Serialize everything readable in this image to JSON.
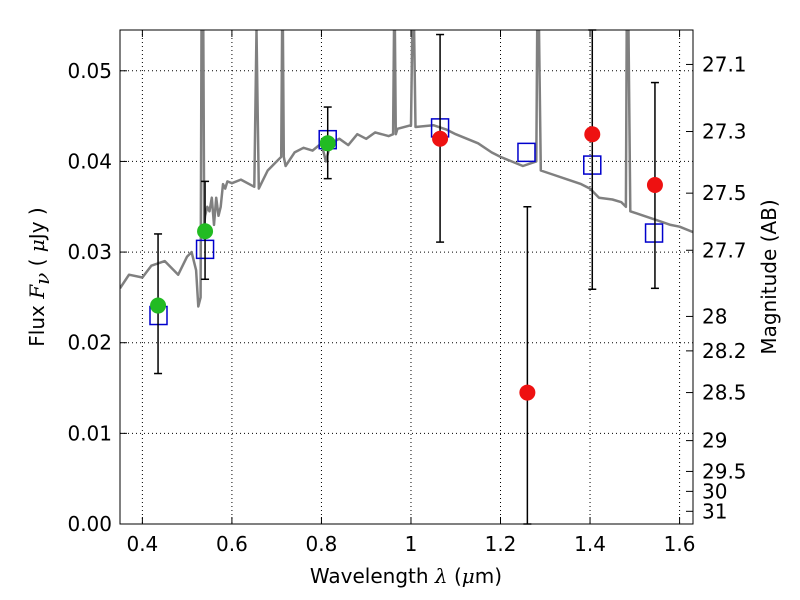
{
  "chart_data": {
    "type": "scatter",
    "xlabel": "Wavelength  λ (μm)",
    "ylabel": "Flux  F_ν  ( μJy )",
    "ylabel_parts": {
      "prefix": "Flux",
      "symbol": "F",
      "subscript": "ν",
      "open": "( ",
      "mu": "μ",
      "unit": "Jy )"
    },
    "xlabel_parts": {
      "prefix": "Wavelength",
      "symbol": "λ",
      "unit_open": "(",
      "mu": "μ",
      "unit_close": "m)"
    },
    "y2label": "Magnitude (AB)",
    "xlim": [
      0.35,
      1.63
    ],
    "ylim": [
      0.0,
      0.0545
    ],
    "grid": true,
    "x_ticks": [
      0.4,
      0.6,
      0.8,
      1.0,
      1.2,
      1.4,
      1.6
    ],
    "x_tick_labels": [
      "0.4",
      "0.6",
      "0.8",
      "1",
      "1.2",
      "1.4",
      "1.6"
    ],
    "y_ticks": [
      0.0,
      0.01,
      0.02,
      0.03,
      0.04,
      0.05
    ],
    "y_tick_labels": [
      "0.00",
      "0.01",
      "0.02",
      "0.03",
      "0.04",
      "0.05"
    ],
    "y2_ticks": [
      {
        "flux": 0.0507,
        "label": "27.1"
      },
      {
        "flux": 0.0433,
        "label": "27.3"
      },
      {
        "flux": 0.0365,
        "label": "27.5"
      },
      {
        "flux": 0.0302,
        "label": "27.7"
      },
      {
        "flux": 0.0229,
        "label": "28"
      },
      {
        "flux": 0.0191,
        "label": "28.2"
      },
      {
        "flux": 0.0145,
        "label": "28.5"
      },
      {
        "flux": 0.0092,
        "label": "29"
      },
      {
        "flux": 0.0058,
        "label": "29.5"
      },
      {
        "flux": 0.0036,
        "label": "30"
      },
      {
        "flux": 0.0014,
        "label": "31"
      }
    ],
    "colors": {
      "model": "#808080",
      "green": "#22bb22",
      "red": "#ee1111",
      "model_box": "#0000cc",
      "errorbar": "#000000",
      "grid": "#000000"
    },
    "series": [
      {
        "name": "green points",
        "marker": "circle",
        "color": "green",
        "points": [
          {
            "x": 0.435,
            "y": 0.0241,
            "yerr_low": 0.0166,
            "yerr_high": 0.032
          },
          {
            "x": 0.54,
            "y": 0.0323,
            "yerr_low": 0.027,
            "yerr_high": 0.0378
          },
          {
            "x": 0.814,
            "y": 0.042,
            "yerr_low": 0.0381,
            "yerr_high": 0.046
          }
        ]
      },
      {
        "name": "red points",
        "marker": "circle",
        "color": "red",
        "points": [
          {
            "x": 1.065,
            "y": 0.0425,
            "yerr_low": 0.0311,
            "yerr_high": 0.054
          },
          {
            "x": 1.26,
            "y": 0.0145,
            "yerr_low": 0.0,
            "yerr_high": 0.035
          },
          {
            "x": 1.405,
            "y": 0.043,
            "yerr_low": 0.0259,
            "yerr_high": 0.0545
          },
          {
            "x": 1.545,
            "y": 0.0374,
            "yerr_low": 0.026,
            "yerr_high": 0.0487
          }
        ]
      },
      {
        "name": "model photometry",
        "marker": "square",
        "color": "model_box",
        "points": [
          {
            "x": 0.436,
            "y": 0.023
          },
          {
            "x": 0.54,
            "y": 0.0303
          },
          {
            "x": 0.814,
            "y": 0.0424
          },
          {
            "x": 1.065,
            "y": 0.0437
          },
          {
            "x": 1.258,
            "y": 0.041
          },
          {
            "x": 1.405,
            "y": 0.0396
          },
          {
            "x": 1.543,
            "y": 0.0321
          }
        ]
      },
      {
        "name": "model spectrum",
        "type": "line",
        "color": "model",
        "x": [
          0.35,
          0.37,
          0.4,
          0.42,
          0.45,
          0.48,
          0.5,
          0.51,
          0.52,
          0.525,
          0.53,
          0.532,
          0.534,
          0.536,
          0.538,
          0.54,
          0.545,
          0.55,
          0.555,
          0.56,
          0.565,
          0.57,
          0.575,
          0.58,
          0.585,
          0.59,
          0.6,
          0.62,
          0.65,
          0.655,
          0.66,
          0.665,
          0.68,
          0.7,
          0.71,
          0.712,
          0.714,
          0.716,
          0.72,
          0.74,
          0.76,
          0.78,
          0.8,
          0.81,
          0.82,
          0.84,
          0.86,
          0.88,
          0.9,
          0.92,
          0.95,
          0.96,
          0.962,
          0.964,
          0.966,
          0.97,
          1.0,
          1.003,
          1.005,
          1.007,
          1.01,
          1.05,
          1.08,
          1.1,
          1.15,
          1.18,
          1.2,
          1.25,
          1.28,
          1.282,
          1.284,
          1.286,
          1.29,
          1.32,
          1.35,
          1.38,
          1.4,
          1.42,
          1.45,
          1.47,
          1.48,
          1.482,
          1.484,
          1.486,
          1.49,
          1.52,
          1.55,
          1.58,
          1.6,
          1.63
        ],
        "y": [
          0.026,
          0.0275,
          0.0272,
          0.0285,
          0.029,
          0.0275,
          0.0295,
          0.03,
          0.028,
          0.024,
          0.025,
          0.0545,
          0.0545,
          0.0545,
          0.033,
          0.034,
          0.035,
          0.0345,
          0.036,
          0.033,
          0.036,
          0.034,
          0.035,
          0.0375,
          0.037,
          0.0378,
          0.0376,
          0.038,
          0.0372,
          0.0545,
          0.037,
          0.0375,
          0.039,
          0.04,
          0.0405,
          0.0545,
          0.0545,
          0.0405,
          0.0395,
          0.041,
          0.0415,
          0.0412,
          0.042,
          0.04,
          0.042,
          0.0425,
          0.0418,
          0.043,
          0.0425,
          0.0432,
          0.0428,
          0.043,
          0.0545,
          0.0545,
          0.043,
          0.0436,
          0.044,
          0.0545,
          0.0545,
          0.0545,
          0.0438,
          0.044,
          0.0435,
          0.043,
          0.042,
          0.041,
          0.0405,
          0.0395,
          0.04,
          0.0545,
          0.0545,
          0.0545,
          0.039,
          0.0385,
          0.038,
          0.0375,
          0.037,
          0.036,
          0.0358,
          0.0355,
          0.035,
          0.0545,
          0.0545,
          0.0545,
          0.0345,
          0.034,
          0.0335,
          0.033,
          0.0328,
          0.0322
        ]
      }
    ]
  }
}
